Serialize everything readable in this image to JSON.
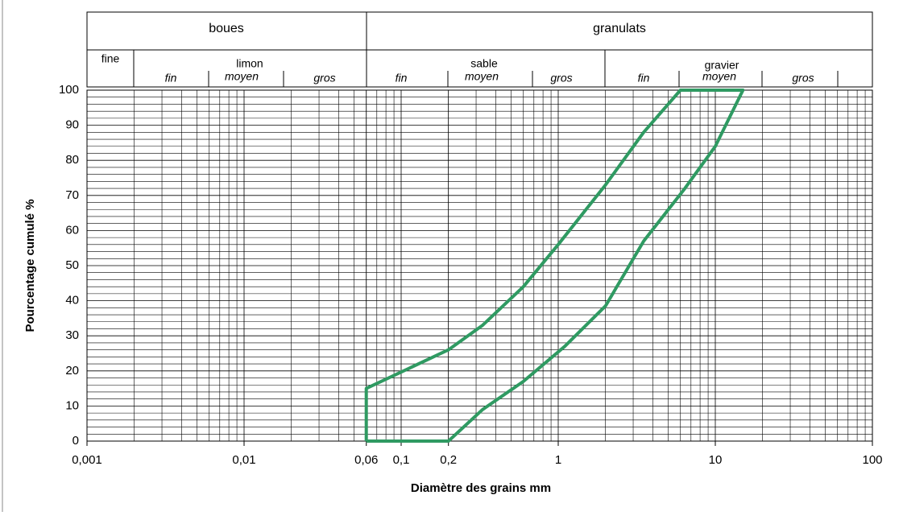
{
  "classification": [
    {
      "label": "boues",
      "classes": [
        {
          "label": "fine"
        },
        {
          "label": "limon",
          "subclasses": [
            "fin",
            "moyen",
            "gros"
          ]
        }
      ]
    },
    {
      "label": "granulats",
      "classes": [
        {
          "label": "sable",
          "subclasses": [
            "fin",
            "moyen",
            "gros"
          ]
        },
        {
          "label": "gravier",
          "subclasses": [
            "fin",
            "moyen",
            "gros"
          ]
        }
      ]
    }
  ],
  "chart_data": {
    "type": "line",
    "x_label": "Diamètre des grains mm",
    "y_label": "Pourcentage cumulé %",
    "xscale": "log",
    "xlim": [
      0.001,
      100
    ],
    "xticks": [
      {
        "value": 0.001,
        "label": "0,001"
      },
      {
        "value": 0.01,
        "label": "0,01"
      },
      {
        "value": 0.06,
        "label": "0,06"
      },
      {
        "value": 0.1,
        "label": "0,1"
      },
      {
        "value": 0.2,
        "label": "0,2"
      },
      1,
      10,
      100
    ],
    "ylim": [
      0,
      100
    ],
    "yticks": [
      0,
      10,
      20,
      30,
      40,
      50,
      60,
      70,
      80,
      90,
      100
    ],
    "grid": true,
    "minor_grid": true,
    "series": [
      {
        "color": "#2f9a62",
        "x": [
          0.06,
          0.06,
          0.2,
          0.33,
          0.6,
          1,
          2,
          3.5,
          6,
          15,
          10,
          6.4,
          3.5,
          2,
          1.1,
          0.6,
          0.33,
          0.2,
          0.06
        ],
        "values": [
          0,
          15,
          26,
          33,
          44,
          56,
          73,
          88,
          100,
          100,
          84,
          72,
          57,
          38.5,
          27,
          17,
          9,
          0,
          0
        ]
      }
    ]
  }
}
